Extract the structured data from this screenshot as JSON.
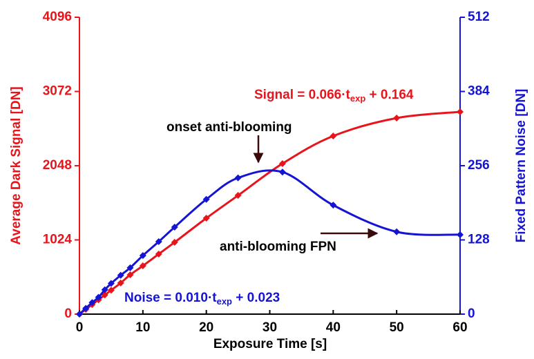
{
  "chart_data": {
    "type": "line",
    "x_label": "Exposure Time [s]",
    "y_label": "Average Dark Signal [DN]",
    "y2_label": "Fixed Pattern Noise [DN]",
    "x": [
      0,
      1,
      2,
      3,
      4,
      5,
      6.5,
      8,
      10,
      12.5,
      15,
      20,
      25,
      32,
      40,
      50,
      60
    ],
    "series": [
      {
        "name": "Signal",
        "color": "#e8141c",
        "axis": "y",
        "values": [
          0,
          66,
          132,
          198,
          264,
          330,
          430,
          543,
          667,
          829,
          991,
          1324,
          1638,
          2077,
          2458,
          2705,
          2791
        ]
      },
      {
        "name": "Noise",
        "color": "#1414d2",
        "axis": "y2",
        "values": [
          0,
          10,
          20,
          29,
          42,
          53,
          67,
          80,
          101,
          125,
          150,
          198,
          235,
          245,
          188,
          142,
          137
        ]
      }
    ],
    "xlim": [
      0,
      60
    ],
    "xticks": [
      0,
      10,
      20,
      30,
      40,
      50,
      60
    ],
    "ylim": [
      0,
      4096
    ],
    "yticks": [
      0,
      1024,
      2048,
      3072,
      4096
    ],
    "y2lim": [
      0,
      512
    ],
    "y2ticks": [
      0,
      128,
      256,
      384,
      512
    ],
    "annotations": {
      "signal_fit": {
        "text": "Signal = 0.066·t",
        "sub": "exp",
        "tail": " + 0.164"
      },
      "noise_fit": {
        "text": "Noise = 0.010·t",
        "sub": "exp",
        "tail": " + 0.023"
      },
      "onset": "onset anti-blooming",
      "fpn": "anti-blooming FPN"
    }
  }
}
